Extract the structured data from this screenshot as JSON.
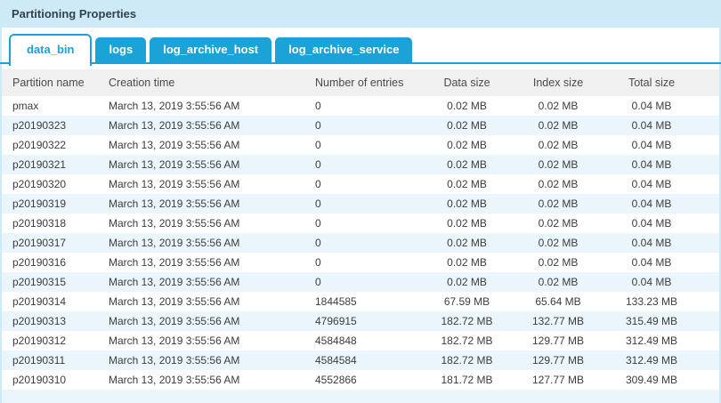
{
  "panel": {
    "title": "Partitioning Properties"
  },
  "tabs": [
    {
      "label": "data_bin",
      "active": true
    },
    {
      "label": "logs",
      "active": false
    },
    {
      "label": "log_archive_host",
      "active": false
    },
    {
      "label": "log_archive_service",
      "active": false
    }
  ],
  "table": {
    "columns": [
      {
        "key": "name",
        "label": "Partition name",
        "align": "left"
      },
      {
        "key": "creation_time",
        "label": "Creation time",
        "align": "left"
      },
      {
        "key": "entries",
        "label": "Number of entries",
        "align": "left"
      },
      {
        "key": "data_size",
        "label": "Data size",
        "align": "center"
      },
      {
        "key": "index_size",
        "label": "Index size",
        "align": "center"
      },
      {
        "key": "total_size",
        "label": "Total size",
        "align": "center"
      }
    ],
    "rows": [
      {
        "name": "pmax",
        "creation_time": "March 13, 2019 3:55:56 AM",
        "entries": "0",
        "data_size": "0.02 MB",
        "index_size": "0.02 MB",
        "total_size": "0.04 MB"
      },
      {
        "name": "p20190323",
        "creation_time": "March 13, 2019 3:55:56 AM",
        "entries": "0",
        "data_size": "0.02 MB",
        "index_size": "0.02 MB",
        "total_size": "0.04 MB"
      },
      {
        "name": "p20190322",
        "creation_time": "March 13, 2019 3:55:56 AM",
        "entries": "0",
        "data_size": "0.02 MB",
        "index_size": "0.02 MB",
        "total_size": "0.04 MB"
      },
      {
        "name": "p20190321",
        "creation_time": "March 13, 2019 3:55:56 AM",
        "entries": "0",
        "data_size": "0.02 MB",
        "index_size": "0.02 MB",
        "total_size": "0.04 MB"
      },
      {
        "name": "p20190320",
        "creation_time": "March 13, 2019 3:55:56 AM",
        "entries": "0",
        "data_size": "0.02 MB",
        "index_size": "0.02 MB",
        "total_size": "0.04 MB"
      },
      {
        "name": "p20190319",
        "creation_time": "March 13, 2019 3:55:56 AM",
        "entries": "0",
        "data_size": "0.02 MB",
        "index_size": "0.02 MB",
        "total_size": "0.04 MB"
      },
      {
        "name": "p20190318",
        "creation_time": "March 13, 2019 3:55:56 AM",
        "entries": "0",
        "data_size": "0.02 MB",
        "index_size": "0.02 MB",
        "total_size": "0.04 MB"
      },
      {
        "name": "p20190317",
        "creation_time": "March 13, 2019 3:55:56 AM",
        "entries": "0",
        "data_size": "0.02 MB",
        "index_size": "0.02 MB",
        "total_size": "0.04 MB"
      },
      {
        "name": "p20190316",
        "creation_time": "March 13, 2019 3:55:56 AM",
        "entries": "0",
        "data_size": "0.02 MB",
        "index_size": "0.02 MB",
        "total_size": "0.04 MB"
      },
      {
        "name": "p20190315",
        "creation_time": "March 13, 2019 3:55:56 AM",
        "entries": "0",
        "data_size": "0.02 MB",
        "index_size": "0.02 MB",
        "total_size": "0.04 MB"
      },
      {
        "name": "p20190314",
        "creation_time": "March 13, 2019 3:55:56 AM",
        "entries": "1844585",
        "data_size": "67.59 MB",
        "index_size": "65.64 MB",
        "total_size": "133.23 MB"
      },
      {
        "name": "p20190313",
        "creation_time": "March 13, 2019 3:55:56 AM",
        "entries": "4796915",
        "data_size": "182.72 MB",
        "index_size": "132.77 MB",
        "total_size": "315.49 MB"
      },
      {
        "name": "p20190312",
        "creation_time": "March 13, 2019 3:55:56 AM",
        "entries": "4584848",
        "data_size": "182.72 MB",
        "index_size": "129.77 MB",
        "total_size": "312.49 MB"
      },
      {
        "name": "p20190311",
        "creation_time": "March 13, 2019 3:55:56 AM",
        "entries": "4584584",
        "data_size": "182.72 MB",
        "index_size": "129.77 MB",
        "total_size": "312.49 MB"
      },
      {
        "name": "p20190310",
        "creation_time": "March 13, 2019 3:55:56 AM",
        "entries": "4552866",
        "data_size": "181.72 MB",
        "index_size": "127.77 MB",
        "total_size": "309.49 MB"
      }
    ]
  },
  "colors": {
    "accent_blue": "#1ba2d6",
    "titlebar_bg": "#cfeaf7",
    "alt_row_bg": "#eaf6fb",
    "header_row_bg": "#f0f0f0"
  }
}
